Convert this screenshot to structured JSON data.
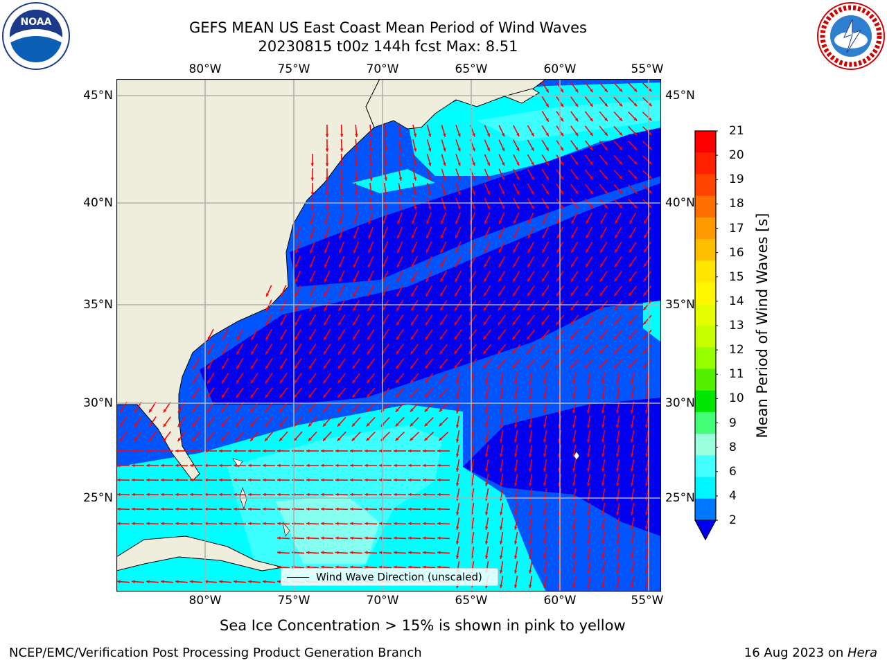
{
  "header": {
    "title_line1": "GEFS MEAN US East Coast Mean Period of Wind Waves",
    "title_line2": "20230815 t00z 144h fcst   Max: 8.51"
  },
  "map": {
    "lon_ticks": [
      "80°W",
      "75°W",
      "70°W",
      "65°W",
      "60°W",
      "55°W"
    ],
    "lat_ticks": [
      "45°N",
      "40°N",
      "35°N",
      "30°N",
      "25°N"
    ],
    "legend_label": "Wind Wave Direction (unscaled)",
    "colors": {
      "land": "#efeedc",
      "period_2_4": "#0055ff",
      "period_lt_2": "#0000ee",
      "period_4_6": "#00ffff",
      "period_6_8": "#44ffff",
      "arrow": "#ff0000"
    }
  },
  "colorbar": {
    "label": "Mean Period of Wind Waves [s]",
    "ticks": [
      "21",
      "20",
      "19",
      "18",
      "17",
      "16",
      "15",
      "14",
      "13",
      "12",
      "11",
      "10",
      "9",
      "8",
      "6",
      "4",
      "2"
    ],
    "colors": [
      "#ff0000",
      "#ff2000",
      "#ff4400",
      "#ff6e00",
      "#ff9a00",
      "#ffbf00",
      "#ffe600",
      "#fff700",
      "#e6ff00",
      "#c8ff00",
      "#96ff00",
      "#55f000",
      "#00e600",
      "#44ff77",
      "#99ffdd",
      "#44ffff",
      "#00f6ff",
      "#0077ff"
    ]
  },
  "footer": {
    "note": "Sea Ice Concentration > 15% is shown in pink to yellow",
    "left": "NCEP/EMC/Verification Post Processing Product Generation Branch",
    "right_prefix": "16 Aug 2023 on ",
    "right_machine": "Hera"
  },
  "logos": {
    "left": "NOAA",
    "right": "NATIONAL WEATHER SERVICE"
  }
}
